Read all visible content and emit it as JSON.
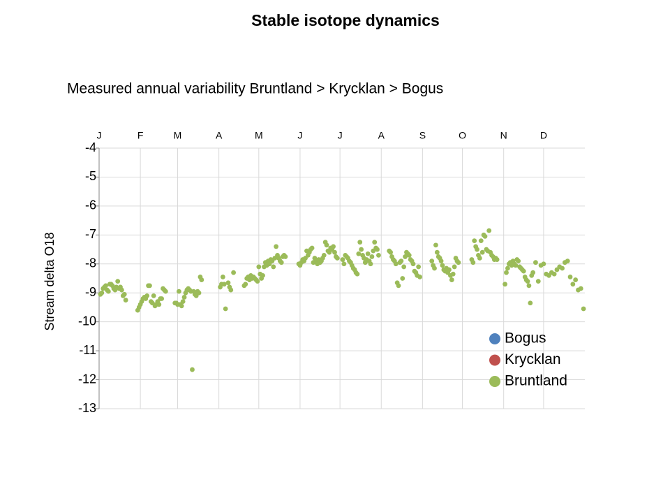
{
  "chart_data": {
    "type": "scatter",
    "title": "Stable isotope dynamics",
    "subtitle": "Measured annual variability Bruntland > Krycklan > Bogus",
    "y_label": "Stream delta O18",
    "xlim": [
      0,
      365
    ],
    "xticks": [
      {
        "value": 0,
        "label": "J"
      },
      {
        "value": 31,
        "label": "F"
      },
      {
        "value": 59,
        "label": "M"
      },
      {
        "value": 90,
        "label": "A"
      },
      {
        "value": 120,
        "label": "M"
      },
      {
        "value": 151,
        "label": "J"
      },
      {
        "value": 181,
        "label": "J"
      },
      {
        "value": 212,
        "label": "A"
      },
      {
        "value": 243,
        "label": "S"
      },
      {
        "value": 273,
        "label": "O"
      },
      {
        "value": 304,
        "label": "N"
      },
      {
        "value": 334,
        "label": "D"
      }
    ],
    "ylim": [
      -13,
      -4
    ],
    "yticks": [
      -4,
      -5,
      -6,
      -7,
      -8,
      -9,
      -10,
      -11,
      -12,
      -13
    ],
    "grid": true,
    "legend": "bottom-right",
    "series": [
      {
        "name": "Bogus",
        "color": "#4f81bd",
        "x": [],
        "values": []
      },
      {
        "name": "Krycklan",
        "color": "#c0504d",
        "x": [],
        "values": []
      },
      {
        "name": "Bruntland",
        "color": "#9bbb59",
        "x": [
          1,
          2,
          3,
          4,
          5,
          6,
          7,
          8,
          9,
          10,
          11,
          12,
          13,
          14,
          15,
          16,
          17,
          18,
          19,
          20,
          29,
          30,
          31,
          32,
          33,
          34,
          35,
          36,
          37,
          38,
          39,
          40,
          41,
          42,
          43,
          44,
          45,
          46,
          47,
          48,
          49,
          50,
          57,
          58,
          59,
          60,
          61,
          62,
          63,
          64,
          65,
          66,
          67,
          68,
          69,
          70,
          71,
          72,
          73,
          74,
          75,
          76,
          77,
          91,
          92,
          93,
          94,
          95,
          97,
          98,
          99,
          101,
          109,
          110,
          111,
          112,
          113,
          114,
          115,
          116,
          117,
          118,
          119,
          120,
          121,
          122,
          123,
          124,
          125,
          126,
          127,
          128,
          129,
          130,
          131,
          132,
          133,
          134,
          135,
          136,
          137,
          138,
          139,
          140,
          150,
          151,
          152,
          153,
          154,
          155,
          156,
          157,
          158,
          159,
          160,
          161,
          162,
          163,
          164,
          165,
          166,
          167,
          168,
          169,
          170,
          171,
          172,
          173,
          174,
          175,
          176,
          177,
          178,
          179,
          183,
          184,
          185,
          186,
          187,
          188,
          189,
          190,
          191,
          192,
          193,
          194,
          195,
          196,
          197,
          198,
          199,
          200,
          201,
          202,
          203,
          204,
          205,
          206,
          207,
          208,
          209,
          210,
          218,
          219,
          220,
          221,
          222,
          223,
          224,
          225,
          226,
          227,
          228,
          229,
          230,
          231,
          232,
          233,
          234,
          235,
          236,
          237,
          238,
          239,
          240,
          241,
          250,
          251,
          252,
          253,
          254,
          255,
          256,
          257,
          258,
          259,
          260,
          261,
          262,
          263,
          264,
          265,
          266,
          267,
          268,
          269,
          270,
          280,
          281,
          282,
          283,
          284,
          285,
          286,
          287,
          288,
          289,
          290,
          291,
          292,
          293,
          294,
          295,
          296,
          297,
          298,
          299,
          305,
          306,
          307,
          308,
          309,
          310,
          311,
          312,
          313,
          314,
          315,
          316,
          317,
          318,
          319,
          320,
          321,
          322,
          323,
          324,
          325,
          326,
          328,
          330,
          332,
          334,
          336,
          338,
          340,
          342,
          344,
          346,
          348,
          350,
          352,
          354,
          356,
          358,
          360,
          362,
          364
        ],
        "values": [
          -9.05,
          -9.0,
          -8.85,
          -8.8,
          -8.75,
          -8.9,
          -8.95,
          -8.7,
          -8.7,
          -8.75,
          -8.85,
          -8.9,
          -8.8,
          -8.6,
          -8.85,
          -8.8,
          -8.9,
          -9.1,
          -9.05,
          -9.25,
          -9.6,
          -9.5,
          -9.4,
          -9.3,
          -9.2,
          -9.15,
          -9.2,
          -9.1,
          -8.75,
          -8.75,
          -9.3,
          -9.35,
          -9.1,
          -9.45,
          -9.4,
          -9.3,
          -9.4,
          -9.2,
          -9.2,
          -8.85,
          -8.9,
          -8.95,
          -9.35,
          -9.35,
          -9.4,
          -8.95,
          -9.4,
          -9.45,
          -9.3,
          -9.15,
          -9.0,
          -8.9,
          -8.85,
          -8.9,
          -8.95,
          -11.65,
          -8.95,
          -9.05,
          -9.1,
          -8.95,
          -9.0,
          -8.45,
          -8.55,
          -8.8,
          -8.7,
          -8.45,
          -8.7,
          -9.55,
          -8.65,
          -8.8,
          -8.9,
          -8.3,
          -8.75,
          -8.7,
          -8.5,
          -8.45,
          -8.55,
          -8.4,
          -8.5,
          -8.45,
          -8.5,
          -8.55,
          -8.6,
          -8.1,
          -8.35,
          -8.5,
          -8.4,
          -8.1,
          -7.95,
          -8.05,
          -7.9,
          -8.0,
          -7.85,
          -7.9,
          -8.1,
          -7.8,
          -7.4,
          -7.7,
          -7.8,
          -7.9,
          -7.95,
          -7.75,
          -7.7,
          -7.75,
          -8.0,
          -8.05,
          -7.95,
          -7.85,
          -7.9,
          -7.8,
          -7.55,
          -7.7,
          -7.6,
          -7.5,
          -7.45,
          -7.95,
          -7.8,
          -7.9,
          -8.0,
          -7.85,
          -7.95,
          -7.9,
          -7.8,
          -7.7,
          -7.25,
          -7.35,
          -7.55,
          -7.6,
          -7.45,
          -7.5,
          -7.4,
          -7.6,
          -7.75,
          -7.8,
          -7.85,
          -8.0,
          -7.7,
          -7.75,
          -7.8,
          -7.9,
          -7.95,
          -8.05,
          -8.15,
          -8.2,
          -8.3,
          -8.35,
          -7.65,
          -7.25,
          -7.5,
          -7.7,
          -7.8,
          -7.95,
          -7.85,
          -7.65,
          -7.9,
          -8.0,
          -7.75,
          -7.55,
          -7.25,
          -7.45,
          -7.5,
          -7.7,
          -7.55,
          -7.6,
          -7.75,
          -7.85,
          -7.9,
          -8.0,
          -8.65,
          -8.75,
          -7.95,
          -7.9,
          -8.5,
          -8.1,
          -7.75,
          -7.6,
          -7.65,
          -7.7,
          -7.85,
          -7.9,
          -8.0,
          -8.25,
          -8.3,
          -8.4,
          -8.1,
          -8.45,
          -7.9,
          -8.05,
          -8.15,
          -7.35,
          -7.6,
          -7.75,
          -7.8,
          -7.9,
          -8.05,
          -8.2,
          -8.25,
          -8.15,
          -8.3,
          -8.2,
          -8.4,
          -8.55,
          -8.35,
          -8.1,
          -7.8,
          -7.9,
          -7.95,
          -7.85,
          -7.95,
          -7.2,
          -7.4,
          -7.5,
          -7.7,
          -7.8,
          -7.2,
          -7.6,
          -7.0,
          -7.05,
          -7.5,
          -7.55,
          -6.85,
          -7.6,
          -7.7,
          -7.75,
          -7.85,
          -7.8,
          -7.85,
          -8.7,
          -8.3,
          -8.15,
          -8.0,
          -7.95,
          -8.05,
          -7.9,
          -8.0,
          -8.05,
          -7.85,
          -7.9,
          -8.1,
          -8.15,
          -8.2,
          -8.25,
          -8.45,
          -8.55,
          -8.6,
          -8.75,
          -9.35,
          -8.4,
          -8.3,
          -7.95,
          -8.6,
          -8.05,
          -8.0,
          -8.35,
          -8.4,
          -8.3,
          -8.35,
          -8.2,
          -8.1,
          -8.15,
          -7.95,
          -7.9,
          -8.45,
          -8.7,
          -8.55,
          -8.9,
          -8.85,
          -9.55
        ]
      }
    ]
  }
}
